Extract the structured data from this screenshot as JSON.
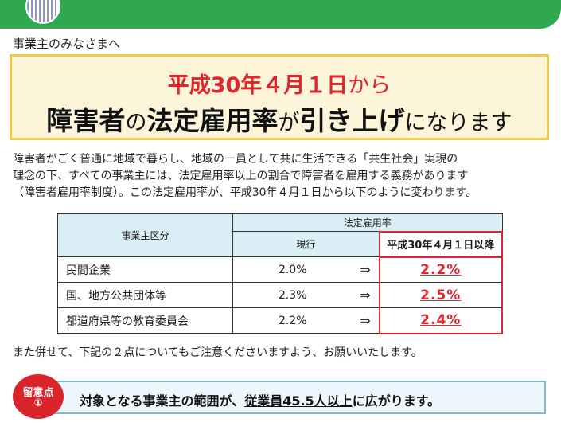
{
  "greeting": "事業主のみなさまへ",
  "headline": {
    "line1_bold": "平成30年４月１日",
    "line1_suffix": "から",
    "line2_part1": "障害者",
    "line2_part2": "の",
    "line2_part3": "法定雇用率",
    "line2_part4": "が",
    "line2_part5": "引き上げ",
    "line2_part6": "になります"
  },
  "intro": {
    "line1": "障害者がごく普通に地域で暮らし、地域の一員として共に生活できる「共生社会」実現の",
    "line2": "理念の下、すべての事業主には、法定雇用率以上の割合で障害者を雇用する義務があります",
    "line3_a": "（障害者雇用率制度）。この法定雇用率が、",
    "line3_b": "平成30年４月１日から以下のように変わります",
    "line3_c": "。"
  },
  "table": {
    "header_category": "事業主区分",
    "header_rate": "法定雇用率",
    "header_current": "現行",
    "header_new": "平成30年４月１日以降",
    "arrow": "⇒",
    "rows": [
      {
        "category": "民間企業",
        "current": "2.0%",
        "new": "2.2%"
      },
      {
        "category": "国、地方公共団体等",
        "current": "2.3%",
        "new": "2.5%"
      },
      {
        "category": "都道府県等の教育委員会",
        "current": "2.2%",
        "new": "2.4%"
      }
    ]
  },
  "note": "また併せて、下記の２点についてもご注意くださいますよう、お願いいたします。",
  "point": {
    "badge_line1": "留意点",
    "badge_line2": "①",
    "text_a": "対象となる事業主の範囲が、",
    "text_b": "従業員45.5人以上",
    "text_c": "に広がります。"
  },
  "colors": {
    "top_bar": "#2fa84f",
    "headline_red": "#e0262c",
    "headline_bg": "#fdf5d9",
    "headline_border": "#f0c94a",
    "table_header_bg": "#daeef5",
    "badge_red": "#d9242b"
  }
}
